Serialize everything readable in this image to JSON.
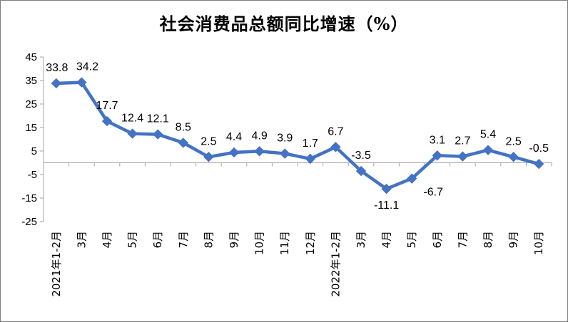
{
  "chart_data": {
    "type": "line",
    "title": "社会消费品总额同比增速（%）",
    "categories": [
      "2021年1-2月",
      "3月",
      "4月",
      "5月",
      "6月",
      "7月",
      "8月",
      "9月",
      "10月",
      "11月",
      "12月",
      "2022年1-2月",
      "3月",
      "4月",
      "5月",
      "6月",
      "7月",
      "8月",
      "9月",
      "10月"
    ],
    "series": [
      {
        "values": [
          33.8,
          34.2,
          17.7,
          12.4,
          12.1,
          8.5,
          2.5,
          4.4,
          4.9,
          3.9,
          1.7,
          6.7,
          -3.5,
          -11.1,
          -6.7,
          3.1,
          2.7,
          5.4,
          2.5,
          -0.5
        ]
      }
    ],
    "value_labels": [
      "33.8",
      "34.2",
      "17.7",
      "12.4",
      "12.1",
      "8.5",
      "2.5",
      "4.4",
      "4.9",
      "3.9",
      "1.7",
      "6.7",
      "-3.5",
      "-11.1",
      "-6.7",
      "3.1",
      "2.7",
      "5.4",
      "2.5",
      "-0.5"
    ],
    "ylim": [
      -25,
      45
    ],
    "yticks": [
      "45",
      "35",
      "25",
      "15",
      "5",
      "-5",
      "-15",
      "-25"
    ],
    "grid": false,
    "legend": "none",
    "colors": {
      "line": "#4472c4",
      "axis": "#a6a6a6"
    },
    "marker": "diamond"
  }
}
